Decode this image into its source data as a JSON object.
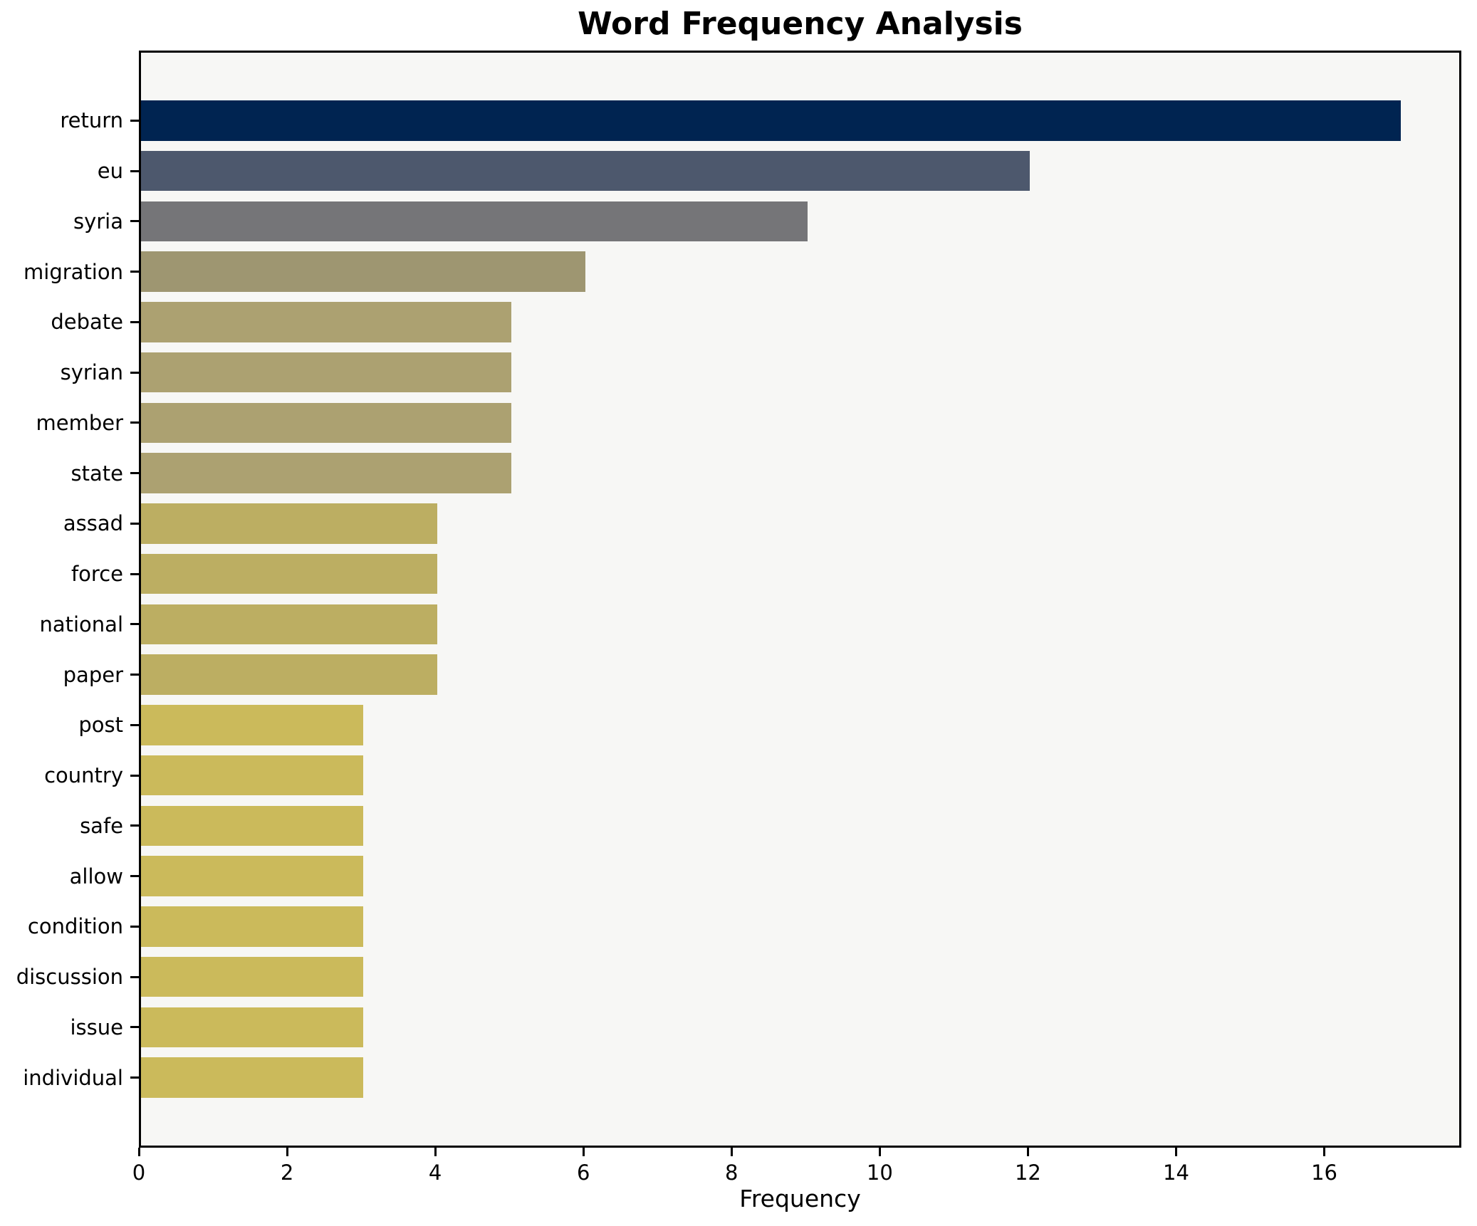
{
  "chart_data": {
    "type": "bar",
    "orientation": "horizontal",
    "title": "Word Frequency Analysis",
    "xlabel": "Frequency",
    "ylabel": "",
    "categories": [
      "return",
      "eu",
      "syria",
      "migration",
      "debate",
      "syrian",
      "member",
      "state",
      "assad",
      "force",
      "national",
      "paper",
      "post",
      "country",
      "safe",
      "allow",
      "condition",
      "discussion",
      "issue",
      "individual"
    ],
    "values": [
      17,
      12,
      9,
      6,
      5,
      5,
      5,
      5,
      4,
      4,
      4,
      4,
      3,
      3,
      3,
      3,
      3,
      3,
      3,
      3
    ],
    "bar_colors": [
      "#002451",
      "#4d586d",
      "#757578",
      "#9e9671",
      "#aca171",
      "#aca171",
      "#aca171",
      "#aca171",
      "#bcae62",
      "#bcae62",
      "#bcae62",
      "#bcae62",
      "#cbba5b",
      "#cbba5b",
      "#cbba5b",
      "#cbba5b",
      "#cbba5b",
      "#cbba5b",
      "#cbba5b",
      "#cbba5b"
    ],
    "xlim": [
      0,
      17.85
    ],
    "xticks": [
      0,
      2,
      4,
      6,
      8,
      10,
      12,
      14,
      16
    ],
    "bar_height_fraction": 0.8,
    "grid": false,
    "legend": "none",
    "plot_background": "#f7f7f5",
    "figure_background": "#ffffff",
    "spine_color": "#000000",
    "title_color": "#000000",
    "tick_color": "#000000"
  }
}
